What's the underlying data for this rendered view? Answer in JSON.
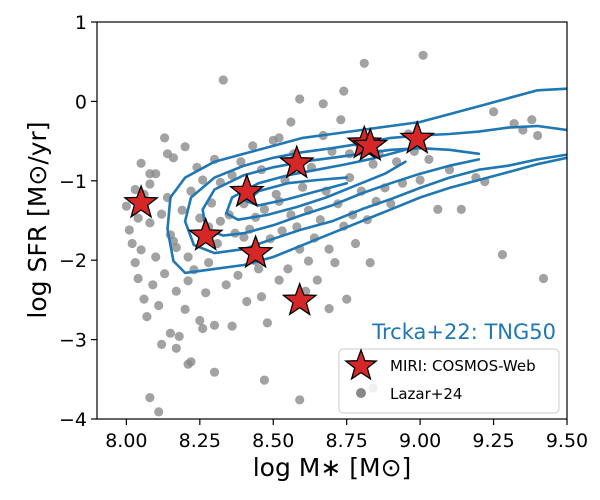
{
  "chart_data": {
    "type": "scatter",
    "xlabel": "log M∗ [M⊙]",
    "ylabel": "log SFR [M⊙/yr]",
    "xlim": [
      7.9,
      9.5
    ],
    "ylim": [
      -4,
      1
    ],
    "xticks": [
      8.0,
      8.25,
      8.5,
      8.75,
      9.0,
      9.25,
      9.5
    ],
    "xtick_labels": [
      "8.00",
      "8.25",
      "8.50",
      "8.75",
      "9.00",
      "9.25",
      "9.50"
    ],
    "yticks": [
      1,
      0,
      -1,
      -2,
      -3,
      -4
    ],
    "ytick_labels": [
      "1",
      "0",
      "−1",
      "−2",
      "−3",
      "−4"
    ],
    "annotation": {
      "text": "Trcka+22: TNG50",
      "color": "#1f77b4"
    },
    "legend": {
      "position": "lower-right",
      "entries": [
        {
          "label": "MIRI: COSMOS-Web",
          "marker": "star",
          "color": "#d62728"
        },
        {
          "label": "Lazar+24",
          "marker": "circle",
          "color": "#888888"
        }
      ]
    },
    "colors": {
      "stars": "#d62728",
      "dots": "#888888",
      "contours": "#1f77b4"
    },
    "series": [
      {
        "name": "MIRI: COSMOS-Web",
        "marker": "star",
        "points": [
          [
            8.05,
            -1.28
          ],
          [
            8.27,
            -1.69
          ],
          [
            8.41,
            -1.14
          ],
          [
            8.44,
            -1.91
          ],
          [
            8.58,
            -0.78
          ],
          [
            8.59,
            -2.51
          ],
          [
            8.81,
            -0.53
          ],
          [
            8.83,
            -0.56
          ],
          [
            8.99,
            -0.47
          ]
        ]
      },
      {
        "name": "Lazar+24",
        "marker": "circle",
        "points": [
          [
            8.0,
            -1.32
          ],
          [
            8.01,
            -1.62
          ],
          [
            8.02,
            -1.79
          ],
          [
            8.03,
            -1.11
          ],
          [
            8.03,
            -2.03
          ],
          [
            8.04,
            -1.47
          ],
          [
            8.04,
            -2.23
          ],
          [
            8.05,
            -0.78
          ],
          [
            8.05,
            -1.87
          ],
          [
            8.06,
            -2.49
          ],
          [
            8.06,
            -1.17
          ],
          [
            8.07,
            -2.71
          ],
          [
            8.08,
            -1.04
          ],
          [
            8.08,
            -1.53
          ],
          [
            8.09,
            -2.31
          ],
          [
            8.1,
            -0.91
          ],
          [
            8.1,
            -1.96
          ],
          [
            8.11,
            -2.57
          ],
          [
            8.12,
            -1.42
          ],
          [
            8.12,
            -3.06
          ],
          [
            8.13,
            -0.46
          ],
          [
            8.13,
            -2.17
          ],
          [
            8.14,
            -1.21
          ],
          [
            8.15,
            -2.92
          ],
          [
            8.15,
            -1.68
          ],
          [
            8.16,
            -0.71
          ],
          [
            8.17,
            -2.39
          ],
          [
            8.17,
            -1.84
          ],
          [
            8.18,
            -2.96
          ],
          [
            8.19,
            -1.37
          ],
          [
            8.2,
            -0.57
          ],
          [
            8.2,
            -2.62
          ],
          [
            8.21,
            -1.96
          ],
          [
            8.22,
            -3.28
          ],
          [
            8.22,
            -1.13
          ],
          [
            8.23,
            -2.12
          ],
          [
            8.24,
            -0.83
          ],
          [
            8.25,
            -1.47
          ],
          [
            8.25,
            -2.76
          ],
          [
            8.26,
            -0.99
          ],
          [
            8.27,
            -2.41
          ],
          [
            8.28,
            -1.58
          ],
          [
            8.28,
            -2.03
          ],
          [
            8.29,
            -1.28
          ],
          [
            8.3,
            -0.73
          ],
          [
            8.3,
            -2.82
          ],
          [
            8.31,
            -1.79
          ],
          [
            8.32,
            -1.02
          ],
          [
            8.33,
            0.27
          ],
          [
            8.34,
            -2.31
          ],
          [
            8.35,
            -1.43
          ],
          [
            8.36,
            -0.93
          ],
          [
            8.36,
            -2.83
          ],
          [
            8.37,
            -1.66
          ],
          [
            8.38,
            -2.19
          ],
          [
            8.39,
            -0.76
          ],
          [
            8.4,
            -1.29
          ],
          [
            8.41,
            -2.52
          ],
          [
            8.42,
            -1.61
          ],
          [
            8.43,
            -0.56
          ],
          [
            8.44,
            -1.46
          ],
          [
            8.45,
            -2.11
          ],
          [
            8.46,
            -0.86
          ],
          [
            8.46,
            -2.46
          ],
          [
            8.47,
            -1.36
          ],
          [
            8.48,
            -2.79
          ],
          [
            8.49,
            -1.73
          ],
          [
            8.5,
            -0.49
          ],
          [
            8.51,
            -1.17
          ],
          [
            8.52,
            -2.25
          ],
          [
            8.53,
            -1.63
          ],
          [
            8.54,
            -0.99
          ],
          [
            8.55,
            -2.11
          ],
          [
            8.56,
            -1.43
          ],
          [
            8.57,
            -0.66
          ],
          [
            8.58,
            -1.58
          ],
          [
            8.59,
            -1.86
          ],
          [
            8.59,
            -3.76
          ],
          [
            8.6,
            -1.08
          ],
          [
            8.61,
            -2.39
          ],
          [
            8.62,
            -1.37
          ],
          [
            8.63,
            -0.83
          ],
          [
            8.64,
            -1.72
          ],
          [
            8.65,
            -2.25
          ],
          [
            8.66,
            -1.49
          ],
          [
            8.67,
            -0.43
          ],
          [
            8.68,
            -1.13
          ],
          [
            8.69,
            -1.86
          ],
          [
            8.7,
            -0.63
          ],
          [
            8.71,
            -2.03
          ],
          [
            8.72,
            -1.29
          ],
          [
            8.73,
            -0.23
          ],
          [
            8.74,
            -1.57
          ],
          [
            8.75,
            -2.49
          ],
          [
            8.76,
            -0.96
          ],
          [
            8.77,
            -1.43
          ],
          [
            8.78,
            -1.79
          ],
          [
            8.79,
            -0.53
          ],
          [
            8.8,
            -1.13
          ],
          [
            8.81,
            0.48
          ],
          [
            8.82,
            -1.49
          ],
          [
            8.83,
            -2.03
          ],
          [
            8.84,
            -0.79
          ],
          [
            8.85,
            -1.26
          ],
          [
            8.86,
            -0.66
          ],
          [
            8.88,
            -1.09
          ],
          [
            8.9,
            -1.29
          ],
          [
            8.92,
            -0.76
          ],
          [
            8.94,
            -1.03
          ],
          [
            8.96,
            -0.41
          ],
          [
            8.98,
            -0.63
          ],
          [
            9.0,
            -0.99
          ],
          [
            9.01,
            0.58
          ],
          [
            9.03,
            -0.73
          ],
          [
            9.06,
            -1.36
          ],
          [
            9.1,
            -0.86
          ],
          [
            9.14,
            -1.36
          ],
          [
            9.19,
            -0.96
          ],
          [
            9.22,
            -1.01
          ],
          [
            9.25,
            -0.13
          ],
          [
            9.28,
            -1.93
          ],
          [
            9.32,
            -0.28
          ],
          [
            9.35,
            -0.36
          ],
          [
            9.38,
            -0.23
          ],
          [
            9.4,
            -0.43
          ],
          [
            9.42,
            -2.23
          ],
          [
            8.08,
            -3.73
          ],
          [
            8.11,
            -3.91
          ],
          [
            8.17,
            -3.11
          ],
          [
            8.21,
            -3.31
          ],
          [
            8.3,
            -3.41
          ],
          [
            8.47,
            -3.51
          ],
          [
            8.67,
            -0.03
          ],
          [
            8.74,
            0.13
          ],
          [
            8.59,
            0.03
          ],
          [
            8.84,
            -3.61
          ],
          [
            8.4,
            -1.71
          ],
          [
            8.32,
            -1.51
          ],
          [
            8.52,
            -1.26
          ],
          [
            8.44,
            -2.01
          ],
          [
            8.62,
            -2.01
          ],
          [
            8.69,
            -2.61
          ],
          [
            8.21,
            -2.26
          ],
          [
            8.08,
            -0.91
          ],
          [
            8.14,
            -0.66
          ],
          [
            8.26,
            -2.86
          ],
          [
            8.16,
            -1.76
          ],
          [
            8.52,
            -0.46
          ],
          [
            8.76,
            -0.66
          ],
          [
            8.56,
            -0.26
          ]
        ]
      }
    ],
    "contours": [
      {
        "level": 1,
        "points": [
          [
            9.5,
            0.16
          ],
          [
            9.4,
            0.14
          ],
          [
            9.3,
            0.04
          ],
          [
            9.2,
            -0.06
          ],
          [
            9.1,
            -0.16
          ],
          [
            9.0,
            -0.26
          ],
          [
            8.9,
            -0.31
          ],
          [
            8.8,
            -0.36
          ],
          [
            8.7,
            -0.41
          ],
          [
            8.6,
            -0.46
          ],
          [
            8.5,
            -0.56
          ],
          [
            8.4,
            -0.66
          ],
          [
            8.3,
            -0.76
          ],
          [
            8.2,
            -0.96
          ],
          [
            8.15,
            -1.21
          ],
          [
            8.14,
            -1.61
          ],
          [
            8.16,
            -2.01
          ],
          [
            8.2,
            -2.16
          ],
          [
            8.3,
            -2.11
          ],
          [
            8.4,
            -2.06
          ],
          [
            8.5,
            -1.96
          ],
          [
            8.6,
            -1.81
          ],
          [
            8.7,
            -1.66
          ],
          [
            8.8,
            -1.51
          ],
          [
            8.9,
            -1.36
          ],
          [
            9.0,
            -1.21
          ],
          [
            9.1,
            -1.09
          ],
          [
            9.2,
            -0.99
          ],
          [
            9.3,
            -0.89
          ],
          [
            9.4,
            -0.79
          ],
          [
            9.5,
            -0.71
          ]
        ]
      },
      {
        "level": 2,
        "points": [
          [
            9.5,
            -0.36
          ],
          [
            9.4,
            -0.31
          ],
          [
            9.3,
            -0.33
          ],
          [
            9.2,
            -0.38
          ],
          [
            9.1,
            -0.41
          ],
          [
            9.0,
            -0.43
          ],
          [
            8.9,
            -0.46
          ],
          [
            8.8,
            -0.53
          ],
          [
            8.7,
            -0.59
          ],
          [
            8.6,
            -0.64
          ],
          [
            8.5,
            -0.71
          ],
          [
            8.4,
            -0.81
          ],
          [
            8.3,
            -0.96
          ],
          [
            8.22,
            -1.21
          ],
          [
            8.2,
            -1.51
          ],
          [
            8.23,
            -1.81
          ],
          [
            8.3,
            -1.91
          ],
          [
            8.4,
            -1.86
          ],
          [
            8.5,
            -1.73
          ],
          [
            8.6,
            -1.61
          ],
          [
            8.7,
            -1.51
          ],
          [
            8.8,
            -1.36
          ],
          [
            8.9,
            -1.23
          ],
          [
            9.0,
            -1.09
          ],
          [
            9.1,
            -0.96
          ],
          [
            9.2,
            -0.86
          ],
          [
            9.3,
            -0.81
          ],
          [
            9.4,
            -0.73
          ],
          [
            9.5,
            -0.67
          ]
        ]
      },
      {
        "level": 3,
        "points": [
          [
            9.2,
            -0.66
          ],
          [
            9.1,
            -0.61
          ],
          [
            9.0,
            -0.59
          ],
          [
            8.9,
            -0.61
          ],
          [
            8.8,
            -0.66
          ],
          [
            8.7,
            -0.71
          ],
          [
            8.6,
            -0.76
          ],
          [
            8.5,
            -0.83
          ],
          [
            8.4,
            -0.93
          ],
          [
            8.3,
            -1.11
          ],
          [
            8.26,
            -1.36
          ],
          [
            8.27,
            -1.61
          ],
          [
            8.33,
            -1.69
          ],
          [
            8.4,
            -1.66
          ],
          [
            8.5,
            -1.56
          ],
          [
            8.6,
            -1.43
          ],
          [
            8.7,
            -1.31
          ],
          [
            8.8,
            -1.16
          ],
          [
            8.9,
            -1.03
          ],
          [
            9.0,
            -0.91
          ],
          [
            9.1,
            -0.81
          ],
          [
            9.2,
            -0.73
          ]
        ]
      },
      {
        "level": 4,
        "points": [
          [
            8.95,
            -0.61
          ],
          [
            8.85,
            -0.71
          ],
          [
            8.75,
            -0.79
          ],
          [
            8.65,
            -0.86
          ],
          [
            8.55,
            -0.93
          ],
          [
            8.45,
            -1.03
          ],
          [
            8.36,
            -1.21
          ],
          [
            8.34,
            -1.41
          ],
          [
            8.38,
            -1.49
          ],
          [
            8.48,
            -1.43
          ],
          [
            8.58,
            -1.33
          ],
          [
            8.68,
            -1.21
          ],
          [
            8.78,
            -1.06
          ],
          [
            8.88,
            -0.91
          ],
          [
            8.95,
            -0.76
          ]
        ]
      },
      {
        "level": 5,
        "points": [
          [
            8.75,
            -0.96
          ],
          [
            8.65,
            -0.99
          ],
          [
            8.55,
            -1.03
          ],
          [
            8.45,
            -1.13
          ],
          [
            8.41,
            -1.26
          ],
          [
            8.45,
            -1.31
          ],
          [
            8.55,
            -1.23
          ],
          [
            8.65,
            -1.13
          ],
          [
            8.75,
            -1.03
          ]
        ]
      }
    ]
  }
}
